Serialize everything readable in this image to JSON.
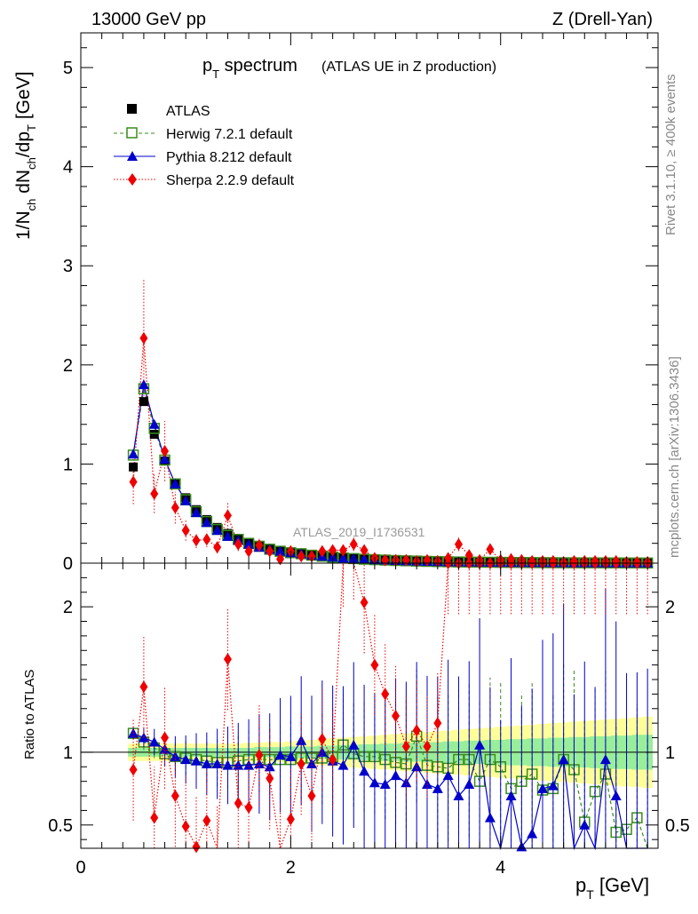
{
  "header": {
    "energy": "13000 GeV pp",
    "process": "Z (Drell-Yan)",
    "rivet_note": "Rivet 3.1.10, ≥ 400k events",
    "mcplots_note": "mcplots.cern.ch [arXiv:1306.3436]",
    "analysis_id": "ATLAS_2019_I1736531"
  },
  "title": {
    "main_base": "p",
    "main_sub": "T",
    "main_rest": " spectrum",
    "aside": "(ATLAS UE in Z production)"
  },
  "axes": {
    "top_ylabel_parts": [
      "1/N",
      "ch",
      " dN",
      "ch",
      "/dp",
      "T",
      " [GeV]"
    ],
    "bottom_ylabel": "Ratio to ATLAS",
    "xlabel_base": "p",
    "xlabel_sub": "T",
    "xlabel_rest": " [GeV]"
  },
  "legend": [
    {
      "key": "atlas",
      "label": "ATLAS"
    },
    {
      "key": "herwig",
      "label": "Herwig 7.2.1 default"
    },
    {
      "key": "pythia",
      "label": "Pythia 8.212 default"
    },
    {
      "key": "sherpa",
      "label": "Sherpa 2.2.9 default"
    }
  ],
  "colors": {
    "atlas": "#000000",
    "herwig": "#3a8c1c",
    "pythia": "#0000cc",
    "sherpa": "#ee0000",
    "band_inner": "#99ee99",
    "band_outer": "#ffff99"
  },
  "chart_data": {
    "type": "scatter",
    "x": [
      0.5,
      0.6,
      0.7,
      0.8,
      0.9,
      1.0,
      1.1,
      1.2,
      1.3,
      1.4,
      1.5,
      1.6,
      1.7,
      1.8,
      1.9,
      2.0,
      2.1,
      2.2,
      2.3,
      2.4,
      2.5,
      2.6,
      2.7,
      2.8,
      2.9,
      3.0,
      3.1,
      3.2,
      3.3,
      3.4,
      3.5,
      3.6,
      3.7,
      3.8,
      3.9,
      4.0,
      4.1,
      4.2,
      4.3,
      4.4,
      4.5,
      4.6,
      4.7,
      4.8,
      4.9,
      5.0,
      5.1,
      5.2,
      5.3,
      5.4
    ],
    "top": {
      "xlim": [
        0,
        5.5
      ],
      "ylim": [
        0,
        5.35
      ],
      "yticks": [
        0,
        1,
        2,
        3,
        4,
        5
      ],
      "ytick_labels": [
        "0",
        "1",
        "2",
        "3",
        "4",
        "5"
      ],
      "series": [
        {
          "key": "atlas",
          "name": "ATLAS",
          "values": [
            0.97,
            1.63,
            1.3,
            1.03,
            0.81,
            0.66,
            0.54,
            0.44,
            0.36,
            0.3,
            0.25,
            0.21,
            0.18,
            0.15,
            0.13,
            0.11,
            0.1,
            0.085,
            0.073,
            0.063,
            0.055,
            0.048,
            0.042,
            0.037,
            0.032,
            0.028,
            0.025,
            0.022,
            0.019,
            0.017,
            0.015,
            0.013,
            0.012,
            0.011,
            0.01,
            0.009,
            0.008,
            0.0072,
            0.0065,
            0.0058,
            0.0052,
            0.0047,
            0.0042,
            0.0038,
            0.0034,
            0.0031,
            0.0028,
            0.0025,
            0.0023,
            0.0021
          ]
        },
        {
          "key": "herwig",
          "name": "Herwig 7.2.1 default",
          "values": [
            1.09,
            1.76,
            1.36,
            1.04,
            0.8,
            0.64,
            0.52,
            0.42,
            0.34,
            0.28,
            0.24,
            0.2,
            0.17,
            0.14,
            0.12,
            0.105,
            0.095,
            0.08,
            0.07,
            0.06,
            0.052,
            0.046,
            0.04,
            0.035,
            0.031,
            0.027,
            0.024,
            0.021,
            0.018,
            0.016,
            0.014,
            0.012,
            0.011,
            0.01,
            0.009,
            0.008,
            0.0072,
            0.0065,
            0.0058,
            0.0052,
            0.0046,
            0.0041,
            0.0037,
            0.0033,
            0.003,
            0.0027,
            0.0024,
            0.0022,
            0.002,
            0.0018
          ]
        },
        {
          "key": "pythia",
          "name": "Pythia 8.212 default",
          "values": [
            1.1,
            1.8,
            1.4,
            1.05,
            0.8,
            0.63,
            0.51,
            0.41,
            0.33,
            0.27,
            0.23,
            0.19,
            0.16,
            0.14,
            0.12,
            0.105,
            0.095,
            0.08,
            0.07,
            0.06,
            0.052,
            0.046,
            0.04,
            0.035,
            0.031,
            0.027,
            0.024,
            0.021,
            0.018,
            0.016,
            0.014,
            0.012,
            0.011,
            0.01,
            0.009,
            0.008,
            0.0072,
            0.0065,
            0.0058,
            0.0052,
            0.0046,
            0.0041,
            0.0037,
            0.0033,
            0.003,
            0.0027,
            0.0024,
            0.0022,
            0.002,
            0.0018
          ]
        },
        {
          "key": "sherpa",
          "name": "Sherpa 2.2.9 default",
          "values": [
            0.82,
            2.27,
            0.7,
            1.13,
            0.56,
            0.33,
            0.23,
            0.24,
            0.16,
            0.48,
            0.19,
            0.12,
            0.18,
            0.12,
            0.04,
            0.12,
            0.07,
            0.07,
            0.12,
            0.13,
            0.13,
            0.19,
            0.13,
            0.05,
            0.03,
            0.03,
            0.03,
            0.02,
            0.03,
            0.02,
            0.05,
            0.19,
            0.08,
            0.03,
            0.14,
            0.03,
            0.04,
            0.03,
            0.02,
            0.02,
            0.02,
            0.01,
            0.02,
            0.02,
            0.02,
            0.02,
            0.02,
            0.01,
            0.01,
            0.01
          ]
        }
      ]
    },
    "ratio": {
      "xlim": [
        0,
        5.5
      ],
      "ylim": [
        0.34,
        2.3
      ],
      "yticks": [
        0.5,
        1,
        2
      ],
      "ytick_labels": [
        "0.5",
        "1",
        "2"
      ],
      "xticks": [
        0,
        2,
        4
      ],
      "xtick_labels": [
        "0",
        "2",
        "4"
      ],
      "band_inner_halfwidth": [
        0.03,
        0.03,
        0.03,
        0.03,
        0.03,
        0.03,
        0.03,
        0.03,
        0.03,
        0.03,
        0.03,
        0.03,
        0.035,
        0.035,
        0.035,
        0.04,
        0.04,
        0.04,
        0.045,
        0.045,
        0.05,
        0.05,
        0.055,
        0.055,
        0.06,
        0.06,
        0.065,
        0.065,
        0.07,
        0.07,
        0.075,
        0.075,
        0.08,
        0.08,
        0.085,
        0.085,
        0.09,
        0.09,
        0.095,
        0.095,
        0.1,
        0.1,
        0.105,
        0.105,
        0.11,
        0.11,
        0.115,
        0.115,
        0.12,
        0.12
      ],
      "band_outer_halfwidth": [
        0.06,
        0.06,
        0.06,
        0.06,
        0.06,
        0.06,
        0.06,
        0.06,
        0.06,
        0.06,
        0.06,
        0.065,
        0.065,
        0.07,
        0.07,
        0.075,
        0.08,
        0.085,
        0.09,
        0.095,
        0.1,
        0.105,
        0.11,
        0.115,
        0.12,
        0.125,
        0.13,
        0.135,
        0.14,
        0.145,
        0.15,
        0.155,
        0.16,
        0.165,
        0.17,
        0.175,
        0.18,
        0.185,
        0.19,
        0.195,
        0.2,
        0.205,
        0.21,
        0.215,
        0.22,
        0.225,
        0.23,
        0.235,
        0.24,
        0.245
      ],
      "series": [
        {
          "key": "herwig",
          "values": [
            1.13,
            1.07,
            1.03,
            0.99,
            0.97,
            0.96,
            0.95,
            0.94,
            0.93,
            0.93,
            0.94,
            0.95,
            0.95,
            0.95,
            0.95,
            0.95,
            0.96,
            0.96,
            0.96,
            0.97,
            1.05,
            0.99,
            0.97,
            0.97,
            0.95,
            0.93,
            0.92,
            1.11,
            0.91,
            0.9,
            0.89,
            0.95,
            0.95,
            0.8,
            0.95,
            0.9,
            0.75,
            0.8,
            0.85,
            0.74,
            0.75,
            0.95,
            0.88,
            0.52,
            0.73,
            0.85,
            0.45,
            0.47,
            0.55,
            0.3
          ]
        },
        {
          "key": "pythia",
          "values": [
            1.13,
            1.1,
            1.07,
            1.02,
            0.97,
            0.95,
            0.94,
            0.92,
            0.92,
            0.91,
            0.91,
            0.91,
            0.92,
            0.9,
            0.98,
            0.97,
            1.08,
            0.92,
            1.0,
            0.94,
            0.91,
            1.05,
            0.87,
            0.79,
            0.78,
            0.84,
            0.79,
            0.9,
            0.78,
            0.75,
            0.84,
            0.7,
            0.78,
            1.05,
            0.55,
            0.3,
            0.7,
            0.35,
            0.44,
            0.75,
            0.77,
            0.95,
            0.3,
            0.5,
            0.3,
            0.95,
            0.7,
            0.32,
            0.3,
            0.3
          ]
        },
        {
          "key": "sherpa",
          "values": [
            0.88,
            1.45,
            0.55,
            1.1,
            0.7,
            0.49,
            0.35,
            0.53,
            0.28,
            1.64,
            0.65,
            0.62,
            0.98,
            0.82,
            0.3,
            0.54,
            0.92,
            0.7,
            1.09,
            0.95,
            2.35,
            2.4,
            2.03,
            1.6,
            1.4,
            1.25,
            1.04,
            1.15,
            1.04,
            1.2,
            2.3,
            2.3,
            2.3,
            2.3,
            2.3,
            2.3,
            2.3,
            2.3,
            2.3,
            2.3,
            2.3,
            2.3,
            2.3,
            2.3,
            2.3,
            2.3,
            2.3,
            2.3,
            2.3,
            2.3
          ]
        }
      ]
    }
  }
}
